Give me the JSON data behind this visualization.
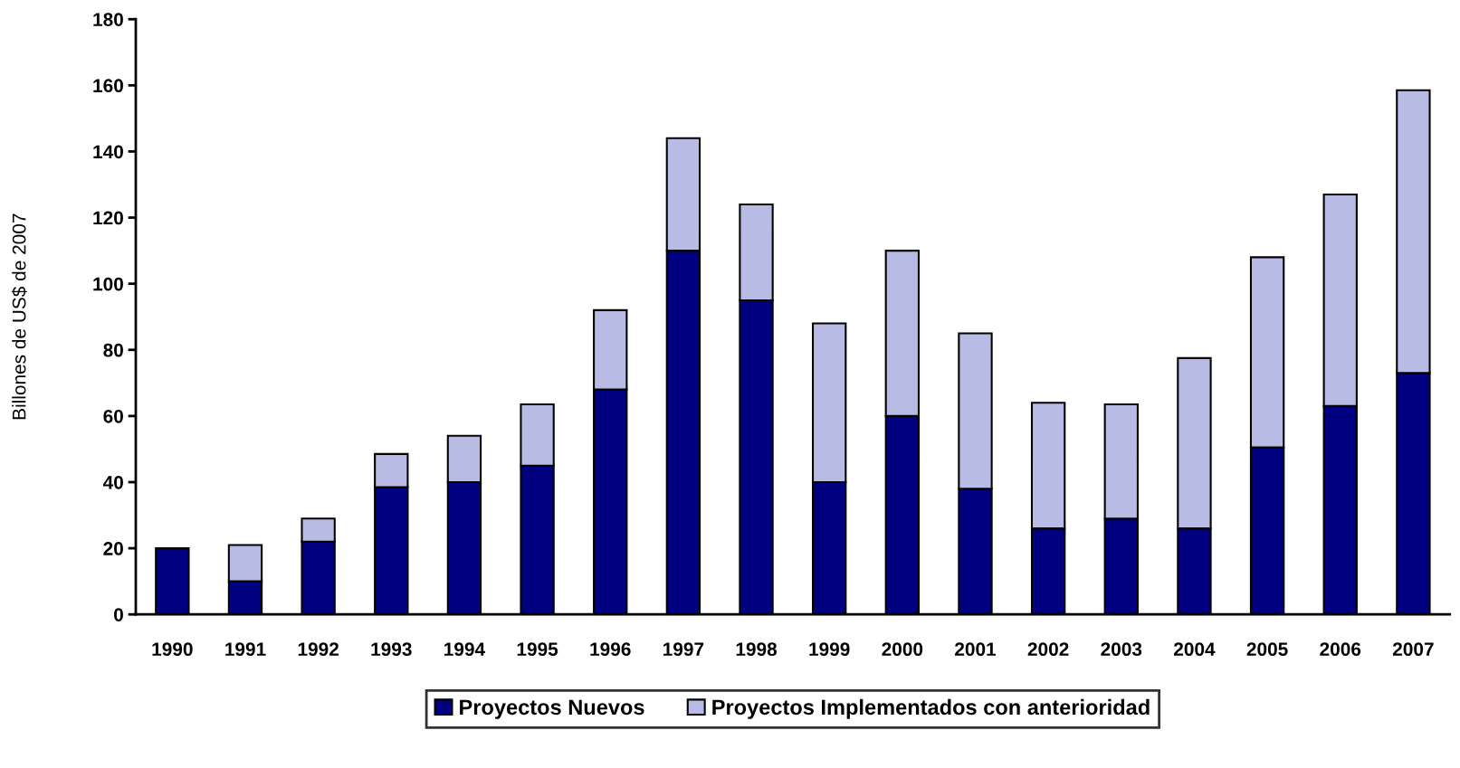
{
  "chart_data": {
    "type": "bar",
    "stacked": true,
    "ylabel": "Billones de US$ de 2007",
    "categories": [
      "1990",
      "1991",
      "1992",
      "1993",
      "1994",
      "1995",
      "1996",
      "1997",
      "1998",
      "1999",
      "2000",
      "2001",
      "2002",
      "2003",
      "2004",
      "2005",
      "2006",
      "2007"
    ],
    "series": [
      {
        "name": "Proyectos Nuevos",
        "color": "#000080",
        "values": [
          20,
          10,
          22,
          38.5,
          40,
          45,
          68,
          110,
          95,
          40,
          60,
          38,
          26,
          29,
          26,
          50.5,
          63,
          73
        ]
      },
      {
        "name": "Proyectos Implementados con anterioridad",
        "color": "#b8bce4",
        "values": [
          null,
          11,
          7,
          10,
          14,
          18.5,
          24,
          34,
          29,
          48,
          50,
          47,
          38,
          34.5,
          51.5,
          57.5,
          64,
          85.5
        ]
      }
    ],
    "ylim": [
      0,
      180
    ],
    "yticks": [
      0,
      20,
      40,
      60,
      80,
      100,
      120,
      140,
      160,
      180
    ],
    "grid": false,
    "legend": "bottom"
  }
}
